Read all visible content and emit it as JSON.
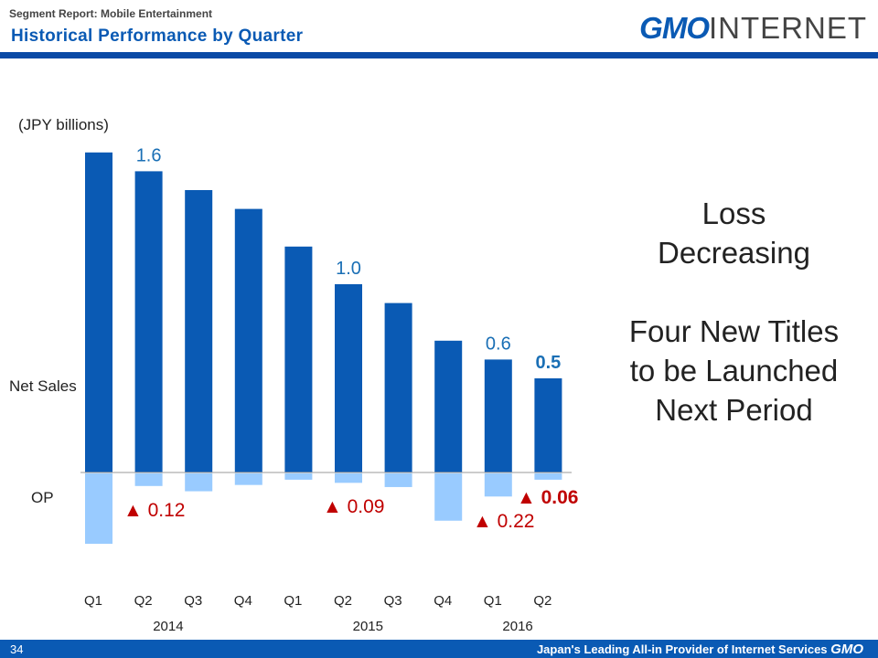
{
  "header": {
    "subtitle": "Segment Report: Mobile Entertainment",
    "title": "Historical Performance by Quarter",
    "logo_bold": "GMO",
    "logo_rest": "INTERNET"
  },
  "footer": {
    "page": "34",
    "tagline": "Japan's Leading All-in Provider of Internet Services",
    "logo": "GMO"
  },
  "colors": {
    "net_sales": "#0a5ab4",
    "op": "#99cbff",
    "loss_label": "#c00000",
    "value_label": "#1a6fb5"
  },
  "messages": {
    "line1": "Loss",
    "line2": "Decreasing",
    "line3": "Four New Titles",
    "line4": "to be Launched",
    "line5": "Next Period"
  },
  "chart_data": {
    "type": "bar",
    "unit_label": "(JPY billions)",
    "categories": [
      "Q1",
      "Q2",
      "Q3",
      "Q4",
      "Q1",
      "Q2",
      "Q3",
      "Q4",
      "Q1",
      "Q2"
    ],
    "years": [
      {
        "label": "2014",
        "span": [
          0,
          3
        ]
      },
      {
        "label": "2015",
        "span": [
          4,
          7
        ]
      },
      {
        "label": "2016",
        "span": [
          8,
          9
        ]
      }
    ],
    "series": [
      {
        "name": "Net Sales",
        "values": [
          1.7,
          1.6,
          1.5,
          1.4,
          1.2,
          1.0,
          0.9,
          0.7,
          0.6,
          0.5
        ],
        "labels": [
          null,
          "1.6",
          null,
          null,
          null,
          "1.0",
          null,
          null,
          "0.6",
          "0.5"
        ]
      },
      {
        "name": "OP",
        "values": [
          -0.67,
          -0.12,
          -0.17,
          -0.11,
          -0.06,
          -0.09,
          -0.13,
          -0.45,
          -0.22,
          -0.06
        ],
        "labels": [
          null,
          "▲ 0.12",
          null,
          null,
          null,
          "▲ 0.09",
          null,
          null,
          "▲ 0.22",
          "▲ 0.06"
        ]
      }
    ]
  }
}
